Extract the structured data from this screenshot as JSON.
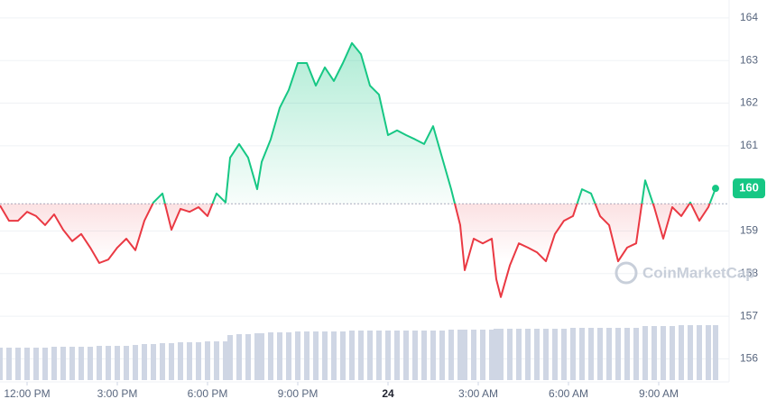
{
  "chart_data": {
    "type": "line",
    "x": [
      -0.9,
      -0.6,
      -0.3,
      0,
      0.3,
      0.6,
      0.9,
      1.2,
      1.5,
      1.8,
      2.1,
      2.4,
      2.7,
      3,
      3.3,
      3.6,
      3.9,
      4.2,
      4.5,
      4.8,
      5.1,
      5.4,
      5.7,
      6,
      6.3,
      6.6,
      6.75,
      7.05,
      7.35,
      7.65,
      7.8,
      8.1,
      8.4,
      8.7,
      9,
      9.3,
      9.6,
      9.9,
      10.2,
      10.5,
      10.8,
      11.1,
      11.4,
      11.7,
      12,
      12.3,
      12.6,
      12.9,
      13.2,
      13.5,
      13.8,
      14.1,
      14.4,
      14.55,
      14.85,
      15.15,
      15.45,
      15.6,
      15.75,
      16.05,
      16.35,
      16.65,
      16.95,
      17.25,
      17.55,
      17.85,
      18.15,
      18.45,
      18.75,
      19.05,
      19.35,
      19.65,
      19.95,
      20.25,
      20.55,
      20.85,
      21.15,
      21.45,
      21.75,
      22.05,
      22.35,
      22.65,
      22.89
    ],
    "values": [
      159.6,
      159.24,
      159.24,
      159.45,
      159.35,
      159.14,
      159.39,
      159.03,
      158.76,
      158.93,
      158.61,
      158.25,
      158.33,
      158.61,
      158.82,
      158.55,
      159.24,
      159.67,
      159.88,
      159.03,
      159.52,
      159.45,
      159.56,
      159.35,
      159.88,
      159.67,
      160.72,
      161.04,
      160.72,
      159.98,
      160.62,
      161.15,
      161.89,
      162.31,
      162.94,
      162.94,
      162.41,
      162.84,
      162.52,
      162.94,
      163.41,
      163.15,
      162.41,
      162.2,
      161.25,
      161.36,
      161.25,
      161.15,
      161.04,
      161.46,
      160.72,
      159.98,
      159.14,
      158.08,
      158.82,
      158.71,
      158.82,
      157.87,
      157.45,
      158.19,
      158.71,
      158.61,
      158.5,
      158.29,
      158.93,
      159.24,
      159.35,
      159.98,
      159.88,
      159.35,
      159.14,
      158.29,
      158.61,
      158.71,
      160.19,
      159.56,
      158.82,
      159.56,
      159.35,
      159.67,
      159.24,
      159.56,
      160
    ],
    "volume": [
      36,
      36,
      36,
      36,
      36,
      36,
      37,
      37,
      37,
      37,
      37,
      38,
      38,
      38,
      38,
      39,
      40,
      40,
      41,
      41,
      42,
      42,
      42,
      43,
      43,
      43,
      50,
      51,
      51,
      52,
      52,
      53,
      53,
      53,
      54,
      54,
      54,
      54,
      54,
      54,
      55,
      55,
      55,
      55,
      55,
      55,
      55,
      55,
      55,
      55,
      55,
      56,
      56,
      56,
      56,
      56,
      56,
      57,
      57,
      57,
      57,
      57,
      57,
      57,
      57,
      57,
      58,
      58,
      58,
      58,
      58,
      58,
      58,
      58,
      60,
      60,
      60,
      60,
      61,
      61,
      61,
      61,
      61
    ],
    "volume_lim": [
      0,
      100
    ],
    "baseline": 159.64,
    "up_color": "#16c784",
    "down_color": "#ea3943",
    "volume_color": "#cfd6e4",
    "xlim": [
      -0.9,
      23.34
    ],
    "xticks": [
      {
        "value": 0,
        "label": "12:00 PM"
      },
      {
        "value": 3,
        "label": "3:00 PM"
      },
      {
        "value": 6,
        "label": "6:00 PM"
      },
      {
        "value": 9,
        "label": "9:00 PM"
      },
      {
        "value": 12,
        "label": "24"
      },
      {
        "value": 15,
        "label": "3:00 AM"
      },
      {
        "value": 18,
        "label": "6:00 AM"
      },
      {
        "value": 21,
        "label": "9:00 AM"
      }
    ],
    "ylim": [
      155.46,
      164.42
    ],
    "yticks": [
      156,
      157,
      158,
      159,
      161,
      162,
      163,
      164
    ],
    "grid": true,
    "watermark": "CoinMarketCap"
  }
}
